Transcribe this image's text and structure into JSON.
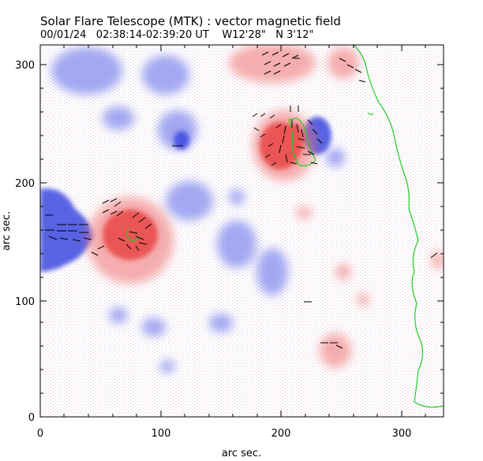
{
  "title": "Solar Flare Telescope (MTK) : vector magnetic field",
  "subtitle": {
    "date": "00/01/24",
    "time": "02:38:14-02:39:20 UT",
    "longitude": "W12'28\"",
    "latitude": "N 3'12\""
  },
  "x_axis": {
    "label": "arc sec.",
    "ticks": [
      "0",
      "100",
      "200",
      "300"
    ]
  },
  "y_axis": {
    "label": "arc sec.",
    "ticks": [
      "0",
      "100",
      "200",
      "300"
    ]
  },
  "colors": {
    "positive_polarity": "#ee4444",
    "negative_polarity": "#4c55e6",
    "neutral_line": "#22cc22",
    "vectors": "#000000"
  }
}
